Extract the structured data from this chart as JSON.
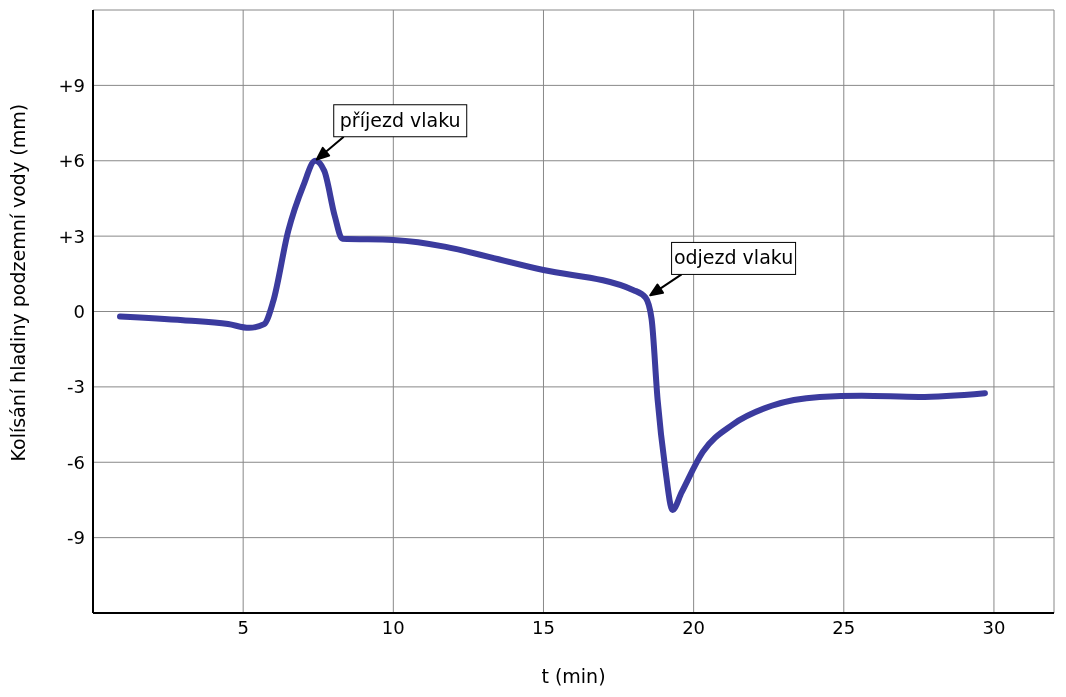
{
  "chart_data": {
    "type": "line",
    "xlabel": "t (min)",
    "ylabel": "Kolísání hladiny podzemní vody (mm)",
    "x": [
      0.9,
      3,
      4.5,
      5.2,
      5.7,
      6.0,
      6.5,
      7.0,
      7.4,
      7.7,
      8.05,
      8.3,
      10,
      15,
      18,
      18.4,
      18.6,
      18.8,
      19.05,
      19.3,
      19.6,
      20.3,
      21.3,
      22.6,
      24.2,
      25.6,
      27.5,
      29.7
    ],
    "series": [
      {
        "color": "#3b3b9e",
        "values": [
          -0.2,
          -0.35,
          -0.5,
          -0.65,
          -0.5,
          0.4,
          3.2,
          5.0,
          6.0,
          5.6,
          3.8,
          2.9,
          2.85,
          1.65,
          0.85,
          0.55,
          -0.3,
          -3.5,
          -6.2,
          -7.9,
          -7.2,
          -5.6,
          -4.5,
          -3.75,
          -3.4,
          -3.35,
          -3.4,
          -3.25
        ]
      }
    ],
    "xlim": [
      0,
      32
    ],
    "xticks": [
      5,
      10,
      15,
      20,
      25,
      30
    ],
    "ylim": [
      -12,
      12
    ],
    "yticks": [
      {
        "value": -9,
        "label": "-9"
      },
      {
        "value": -6,
        "label": "-6"
      },
      {
        "value": -3,
        "label": "-3"
      },
      0,
      {
        "value": 3,
        "label": "+3"
      },
      {
        "value": 6,
        "label": "+6"
      },
      {
        "value": 9,
        "label": "+9"
      }
    ],
    "grid": true,
    "marker": "none",
    "line_style": "solid",
    "annotations": [
      {
        "text": "příjezd vlaku",
        "x": 7.4,
        "y": 6
      },
      {
        "text": "odjezd vlaku",
        "x": 18.5,
        "y": 0.6
      }
    ]
  }
}
